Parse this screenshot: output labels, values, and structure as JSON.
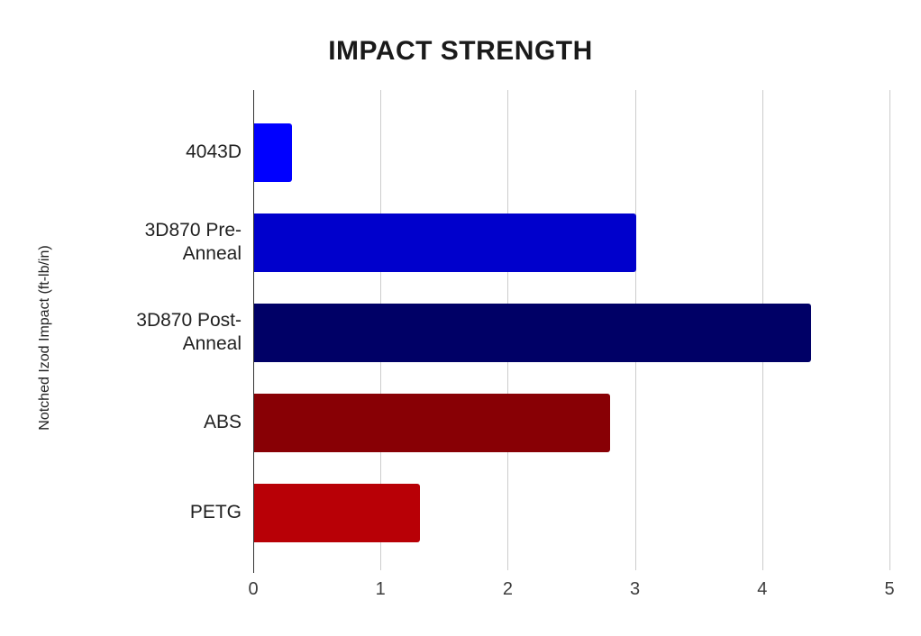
{
  "chart_data": {
    "type": "bar",
    "orientation": "horizontal",
    "title": "IMPACT STRENGTH",
    "xlabel": "",
    "ylabel": "Notched Izod Impact (ft-lb/in)",
    "categories": [
      "4043D",
      "3D870 Pre-Anneal",
      "3D870 Post-Anneal",
      "ABS",
      "PETG"
    ],
    "values": [
      0.3,
      3.0,
      4.38,
      2.8,
      1.3
    ],
    "bar_colors": [
      "#0000ff",
      "#0000cc",
      "#000066",
      "#880005",
      "#b80006"
    ],
    "xlim": [
      0,
      5
    ],
    "x_ticks": [
      "0",
      "1",
      "2",
      "3",
      "4",
      "5"
    ],
    "grid": true,
    "legend": false,
    "background_color": "#ffffff",
    "gridline_color": "#cccccc",
    "axis_line_color": "#333333"
  }
}
